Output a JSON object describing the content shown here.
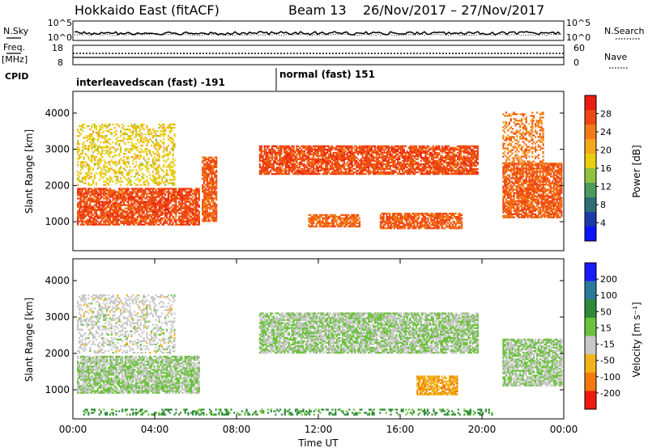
{
  "header": {
    "title": "Hokkaido East (fitACF)",
    "beam": "Beam 13",
    "dates": "26/Nov/2017 – 27/Nov/2017"
  },
  "top_panels": {
    "nsky_label": "N.Sky",
    "nsky_ticks": [
      "10^5",
      "10^0"
    ],
    "nsearch_label": "N.Search",
    "freq_label": "Freq.",
    "freq_unit": "[MHz]",
    "freq_ticks": [
      "18",
      "8"
    ],
    "nave_label": "Nave",
    "nave_ticks": [
      "60",
      "0"
    ],
    "cpid_label": "CPID",
    "cpid_segments": [
      {
        "name": "interleavedscan (fast) -191",
        "start_hour": 0,
        "end_hour": 10
      },
      {
        "name": "normal (fast) 151",
        "start_hour": 10,
        "end_hour": 24
      }
    ]
  },
  "chart_data": [
    {
      "type": "heatmap",
      "name": "power",
      "xlabel": "",
      "ylabel": "Slant Range [km]",
      "xlim": [
        0,
        24
      ],
      "ylim": [
        200,
        4600
      ],
      "yticks": [
        "1000",
        "2000",
        "3000",
        "4000"
      ],
      "colorbar": {
        "label": "Power [dB]",
        "ticks": [
          "4",
          "8",
          "12",
          "16",
          "20",
          "24",
          "28"
        ],
        "colors": [
          "#0a14ff",
          "#1e3aa8",
          "#2e6e74",
          "#4e9a5c",
          "#8fc23e",
          "#e8d010",
          "#f3a81c",
          "#f27a18",
          "#ee4814",
          "#e81e10"
        ],
        "range": [
          0,
          32
        ]
      },
      "regions": [
        {
          "t": [
            0.2,
            6.2
          ],
          "r": [
            900,
            1900
          ],
          "value": 27
        },
        {
          "t": [
            0.2,
            5.0
          ],
          "r": [
            2000,
            3700
          ],
          "value": 18,
          "sparse": true
        },
        {
          "t": [
            6.3,
            7.0
          ],
          "r": [
            1000,
            2800
          ],
          "value": 26
        },
        {
          "t": [
            9.1,
            19.8
          ],
          "r": [
            2300,
            3100
          ],
          "value": 27
        },
        {
          "t": [
            11.5,
            14.0
          ],
          "r": [
            850,
            1200
          ],
          "value": 25
        },
        {
          "t": [
            15.0,
            19.0
          ],
          "r": [
            800,
            1250
          ],
          "value": 26
        },
        {
          "t": [
            21.0,
            23.9
          ],
          "r": [
            1100,
            2600
          ],
          "value": 26
        },
        {
          "t": [
            21.0,
            23.0
          ],
          "r": [
            2600,
            4000
          ],
          "value": 24,
          "sparse": true
        }
      ]
    },
    {
      "type": "heatmap",
      "name": "velocity",
      "xlabel": "Time UT",
      "ylabel": "Slant Range [km]",
      "xlim": [
        0,
        24
      ],
      "ylim": [
        200,
        4600
      ],
      "xticks": [
        "00:00",
        "04:00",
        "08:00",
        "12:00",
        "16:00",
        "20:00",
        "00:00"
      ],
      "yticks": [
        "1000",
        "2000",
        "3000",
        "4000"
      ],
      "colorbar": {
        "label": "Velocity [m s⁻¹]",
        "ticks": [
          "200",
          "100",
          "50",
          "15",
          "-15",
          "-50",
          "-100",
          "-200"
        ],
        "colors": [
          "#1a1aff",
          "#2a7a9a",
          "#2e8a3a",
          "#6cc23c",
          "#c8c8c8",
          "#f2b21a",
          "#f27a10",
          "#ee1a10"
        ],
        "range": [
          -250,
          250
        ]
      },
      "regions": [
        {
          "t": [
            0.2,
            6.2
          ],
          "r": [
            900,
            1900
          ],
          "value": 0
        },
        {
          "t": [
            0.2,
            5.0
          ],
          "r": [
            2000,
            3600
          ],
          "value": -30,
          "sparse": true
        },
        {
          "t": [
            9.1,
            19.8
          ],
          "r": [
            2000,
            3100
          ],
          "value": 0
        },
        {
          "t": [
            16.8,
            18.8
          ],
          "r": [
            850,
            1350
          ],
          "value": -110
        },
        {
          "t": [
            21.0,
            23.9
          ],
          "r": [
            1100,
            2400
          ],
          "value": 0
        },
        {
          "t": [
            0.5,
            20.5
          ],
          "r": [
            300,
            450
          ],
          "value": 80,
          "sparse": true
        }
      ]
    }
  ]
}
